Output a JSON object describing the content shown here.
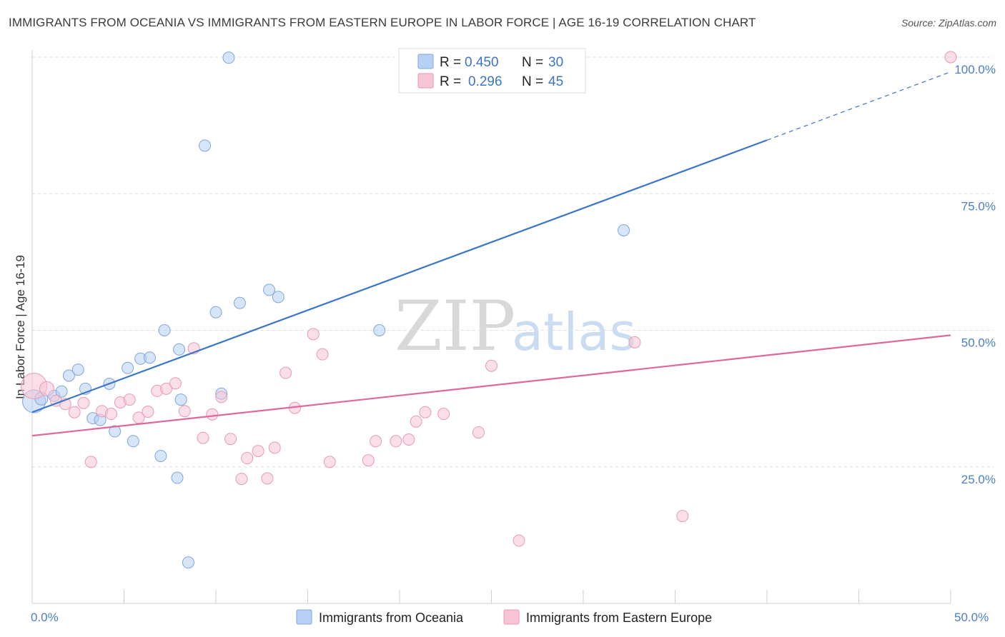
{
  "title": "IMMIGRANTS FROM OCEANIA VS IMMIGRANTS FROM EASTERN EUROPE IN LABOR FORCE | AGE 16-19 CORRELATION CHART",
  "source": "Source: ZipAtlas.com",
  "watermark": {
    "zip": "ZIP",
    "atlas": "atlas"
  },
  "colors": {
    "blue": "#3a75c9",
    "blue_fill": "#b7d0f3",
    "pink": "#e0679a",
    "pink_fill": "#f7c4d5",
    "grid": "#dddddd",
    "axis_tick": "#4a7fc8"
  },
  "legend": {
    "r_label": "R =",
    "n_label": "N =",
    "series": [
      {
        "r": "0.450",
        "n": "30"
      },
      {
        "r": "0.296",
        "n": "45"
      }
    ]
  },
  "chart_data": {
    "type": "scatter",
    "title": "IMMIGRANTS FROM OCEANIA VS IMMIGRANTS FROM EASTERN EUROPE IN LABOR FORCE | AGE 16-19 CORRELATION CHART",
    "xlabel": "",
    "ylabel": "In Labor Force | Age 16-19",
    "xlim": [
      0,
      50
    ],
    "ylim": [
      0,
      100
    ],
    "x_tick_labels": [
      "0.0%",
      "50.0%"
    ],
    "y_ticks": [
      25,
      50,
      75,
      100
    ],
    "y_tick_labels": [
      "25.0%",
      "50.0%",
      "75.0%",
      "100.0%"
    ],
    "grid": true,
    "series": [
      {
        "name": "Immigrants from Oceania",
        "color": "blue",
        "r": 0.45,
        "n": 30,
        "trend": {
          "x0": 0,
          "y0": 35.0,
          "x1": 40,
          "y1": 84.8,
          "dashed_to_x": 50,
          "dashed_to_y": 97.3
        },
        "points": [
          [
            0.1,
            37.0,
            16
          ],
          [
            0.5,
            37.5,
            9
          ],
          [
            1.2,
            38.0,
            8
          ],
          [
            1.6,
            38.8,
            8
          ],
          [
            2.0,
            41.7,
            8
          ],
          [
            2.5,
            42.8,
            8
          ],
          [
            2.9,
            39.3,
            8
          ],
          [
            3.3,
            33.9,
            8
          ],
          [
            3.7,
            33.6,
            8
          ],
          [
            4.2,
            40.2,
            8
          ],
          [
            4.5,
            31.5,
            8
          ],
          [
            5.2,
            43.1,
            8
          ],
          [
            5.5,
            29.7,
            8
          ],
          [
            5.9,
            44.8,
            8
          ],
          [
            6.4,
            45.0,
            8
          ],
          [
            7.0,
            27.0,
            8
          ],
          [
            7.2,
            50.0,
            8
          ],
          [
            7.9,
            23.0,
            8
          ],
          [
            8.1,
            37.3,
            8
          ],
          [
            8.5,
            7.5,
            8
          ],
          [
            8.0,
            46.5,
            8
          ],
          [
            9.4,
            83.8,
            8
          ],
          [
            10.0,
            53.3,
            8
          ],
          [
            10.3,
            38.4,
            8
          ],
          [
            10.7,
            99.9,
            8
          ],
          [
            11.3,
            55.0,
            8
          ],
          [
            12.9,
            57.4,
            8
          ],
          [
            13.4,
            56.1,
            8
          ],
          [
            18.9,
            50.0,
            8
          ],
          [
            32.2,
            68.3,
            8
          ]
        ]
      },
      {
        "name": "Immigrants from Eastern Europe",
        "color": "pink",
        "r": 0.296,
        "n": 45,
        "trend": {
          "x0": 0,
          "y0": 30.7,
          "x1": 50,
          "y1": 49.1
        },
        "points": [
          [
            0.1,
            39.8,
            18
          ],
          [
            0.8,
            39.3,
            10
          ],
          [
            1.3,
            37.1,
            8
          ],
          [
            1.8,
            36.5,
            8
          ],
          [
            2.3,
            35.0,
            8
          ],
          [
            2.8,
            36.7,
            8
          ],
          [
            3.2,
            25.9,
            8
          ],
          [
            3.8,
            35.2,
            8
          ],
          [
            4.3,
            34.7,
            8
          ],
          [
            4.8,
            36.8,
            8
          ],
          [
            5.3,
            37.3,
            8
          ],
          [
            5.8,
            34.0,
            8
          ],
          [
            6.3,
            35.1,
            8
          ],
          [
            6.8,
            38.9,
            8
          ],
          [
            7.3,
            39.3,
            8
          ],
          [
            7.8,
            40.3,
            8
          ],
          [
            8.3,
            35.2,
            8
          ],
          [
            8.8,
            46.7,
            8
          ],
          [
            9.3,
            30.3,
            8
          ],
          [
            9.8,
            34.6,
            8
          ],
          [
            10.3,
            37.8,
            8
          ],
          [
            10.8,
            30.1,
            8
          ],
          [
            11.4,
            22.8,
            8
          ],
          [
            11.7,
            26.6,
            8
          ],
          [
            12.3,
            27.9,
            8
          ],
          [
            12.8,
            22.9,
            8
          ],
          [
            13.2,
            28.5,
            8
          ],
          [
            13.8,
            42.2,
            8
          ],
          [
            14.3,
            35.8,
            8
          ],
          [
            15.3,
            49.3,
            8
          ],
          [
            15.8,
            45.6,
            8
          ],
          [
            16.2,
            25.9,
            8
          ],
          [
            18.3,
            26.2,
            8
          ],
          [
            18.7,
            29.7,
            8
          ],
          [
            19.8,
            29.7,
            8
          ],
          [
            20.5,
            30.0,
            8
          ],
          [
            20.9,
            33.3,
            8
          ],
          [
            21.4,
            35.0,
            8
          ],
          [
            22.4,
            34.7,
            8
          ],
          [
            24.3,
            31.3,
            8
          ],
          [
            25.0,
            43.5,
            8
          ],
          [
            26.5,
            11.5,
            8
          ],
          [
            32.8,
            47.8,
            8
          ],
          [
            35.4,
            16.0,
            8
          ],
          [
            50.0,
            100.0,
            8
          ]
        ]
      }
    ]
  }
}
